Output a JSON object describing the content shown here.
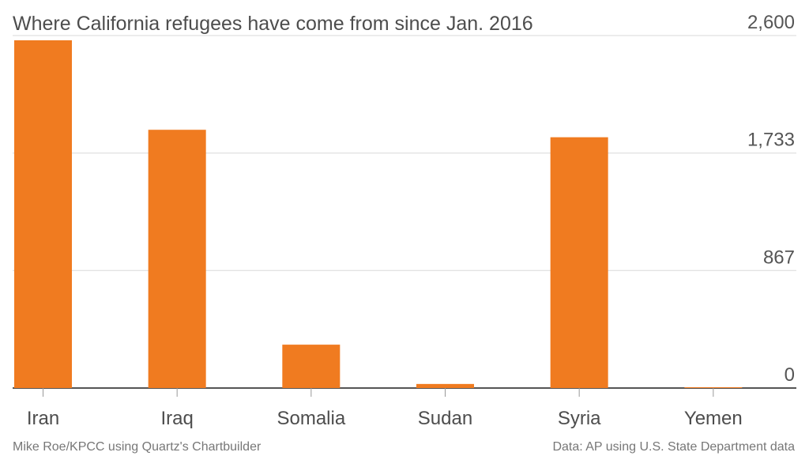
{
  "chart_data": {
    "type": "bar",
    "title": "Where California refugees have come from since Jan. 2016",
    "categories": [
      "Iran",
      "Iraq",
      "Somalia",
      "Sudan",
      "Syria",
      "Yemen"
    ],
    "values": [
      2565,
      1905,
      320,
      30,
      1850,
      5
    ],
    "yticks": [
      0,
      867,
      1733,
      2600
    ],
    "ytick_labels": [
      "0",
      "867",
      "1,733",
      "2,600"
    ],
    "ylim": [
      0,
      2600
    ],
    "grid": true,
    "bar_color": "#f07b20",
    "xlabel": "",
    "ylabel": ""
  },
  "credit_left": "Mike Roe/KPCC using Quartz's Chartbuilder",
  "credit_right": "Data: AP using U.S. State Department data"
}
